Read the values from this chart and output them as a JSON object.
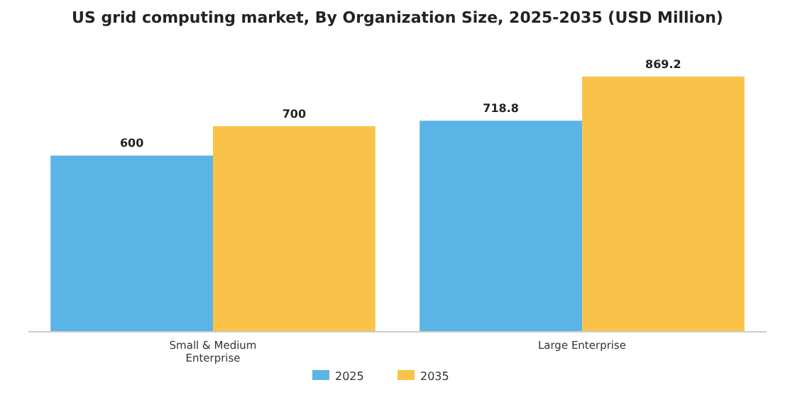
{
  "chart_data": {
    "type": "bar",
    "title": "US grid computing market, By Organization Size, 2025-2035 (USD Million)",
    "categories": [
      "Small & Medium Enterprise",
      "Large Enterprise"
    ],
    "series": [
      {
        "name": "2025",
        "color": "#5bb4e6",
        "values": [
          600,
          718.8
        ]
      },
      {
        "name": "2035",
        "color": "#f9c34a",
        "values": [
          700,
          869.2
        ]
      }
    ],
    "data_labels": true,
    "legend": "bottom",
    "grid": false
  }
}
